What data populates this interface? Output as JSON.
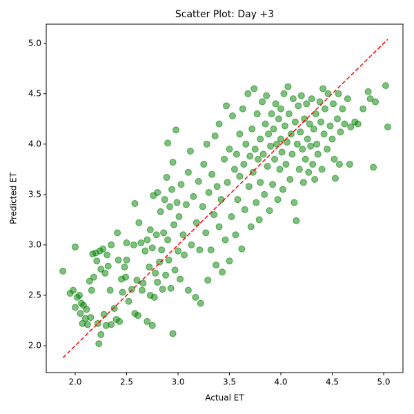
{
  "chart_data": {
    "type": "scatter",
    "title": "Scatter Plot: Day +3",
    "xlabel": "Actual ET",
    "ylabel": "Predicted ET",
    "color": "green",
    "x": [
      1.88,
      1.95,
      1.98,
      2.0,
      2.0,
      2.02,
      2.04,
      2.05,
      2.06,
      2.07,
      2.08,
      2.1,
      2.11,
      2.12,
      2.14,
      2.15,
      2.16,
      2.17,
      2.18,
      2.2,
      2.21,
      2.22,
      2.23,
      2.24,
      2.25,
      2.25,
      2.27,
      2.28,
      2.29,
      2.3,
      2.31,
      2.32,
      2.34,
      2.35,
      2.35,
      2.38,
      2.4,
      2.41,
      2.42,
      2.43,
      2.45,
      2.46,
      2.48,
      2.49,
      2.5,
      2.5,
      2.52,
      2.55,
      2.57,
      2.58,
      2.58,
      2.6,
      2.61,
      2.62,
      2.64,
      2.65,
      2.66,
      2.68,
      2.7,
      2.7,
      2.72,
      2.73,
      2.73,
      2.75,
      2.75,
      2.76,
      2.77,
      2.78,
      2.79,
      2.8,
      2.8,
      2.82,
      2.83,
      2.84,
      2.85,
      2.86,
      2.87,
      2.88,
      2.89,
      2.9,
      2.9,
      2.91,
      2.92,
      2.93,
      2.94,
      2.95,
      2.95,
      2.96,
      2.97,
      2.98,
      2.99,
      3.0,
      3.01,
      3.02,
      3.03,
      3.05,
      3.06,
      3.08,
      3.1,
      3.1,
      3.12,
      3.13,
      3.15,
      3.17,
      3.18,
      3.2,
      3.21,
      3.22,
      3.24,
      3.25,
      3.27,
      3.28,
      3.29,
      3.3,
      3.32,
      3.33,
      3.35,
      3.36,
      3.37,
      3.38,
      3.4,
      3.4,
      3.42,
      3.43,
      3.45,
      3.46,
      3.47,
      3.48,
      3.5,
      3.5,
      3.52,
      3.53,
      3.55,
      3.56,
      3.57,
      3.58,
      3.6,
      3.6,
      3.62,
      3.63,
      3.64,
      3.65,
      3.66,
      3.68,
      3.69,
      3.7,
      3.71,
      3.72,
      3.73,
      3.74,
      3.75,
      3.76,
      3.77,
      3.78,
      3.79,
      3.8,
      3.8,
      3.82,
      3.83,
      3.84,
      3.85,
      3.86,
      3.87,
      3.88,
      3.89,
      3.9,
      3.91,
      3.92,
      3.93,
      3.94,
      3.95,
      3.96,
      3.97,
      3.98,
      3.99,
      4.0,
      4.0,
      4.01,
      4.02,
      4.03,
      4.04,
      4.05,
      4.06,
      4.07,
      4.08,
      4.09,
      4.1,
      4.11,
      4.12,
      4.13,
      4.14,
      4.15,
      4.16,
      4.17,
      4.18,
      4.19,
      4.2,
      4.21,
      4.22,
      4.23,
      4.24,
      4.25,
      4.26,
      4.27,
      4.28,
      4.29,
      4.3,
      4.31,
      4.32,
      4.33,
      4.34,
      4.35,
      4.36,
      4.38,
      4.39,
      4.4,
      4.41,
      4.42,
      4.43,
      4.45,
      4.46,
      4.48,
      4.5,
      4.51,
      4.52,
      4.53,
      4.55,
      4.56,
      4.57,
      4.58,
      4.6,
      4.62,
      4.65,
      4.67,
      4.68,
      4.72,
      4.75,
      4.8,
      4.85,
      4.87,
      4.9,
      4.92,
      5.02,
      5.04
    ],
    "values": [
      2.74,
      2.52,
      2.55,
      2.98,
      2.38,
      2.48,
      2.5,
      2.32,
      2.42,
      2.22,
      2.4,
      2.27,
      2.36,
      2.21,
      2.64,
      2.28,
      2.55,
      2.91,
      2.68,
      2.92,
      2.84,
      2.22,
      2.02,
      2.94,
      2.11,
      2.76,
      2.96,
      2.31,
      2.72,
      2.2,
      2.9,
      2.79,
      2.55,
      2.21,
      3.0,
      2.37,
      2.26,
      3.12,
      2.85,
      2.24,
      2.66,
      2.53,
      2.78,
      2.68,
      2.85,
      3.02,
      2.44,
      2.56,
      3.0,
      2.32,
      3.41,
      2.65,
      2.3,
      3.22,
      3.02,
      2.55,
      2.62,
      2.94,
      2.24,
      3.05,
      2.78,
      2.5,
      3.15,
      2.2,
      2.97,
      3.49,
      2.48,
      2.72,
      3.1,
      2.63,
      3.52,
      2.83,
      3.33,
      2.95,
      2.56,
      3.12,
      3.45,
      2.7,
      3.67,
      4.01,
      3.05,
      2.85,
      3.38,
      2.57,
      3.55,
      3.82,
      2.12,
      3.2,
      2.75,
      4.14,
      3.42,
      2.94,
      3.28,
      2.66,
      3.6,
      3.1,
      2.9,
      3.4,
      3.72,
      2.55,
      3.93,
      3.0,
      3.48,
      2.48,
      3.22,
      3.63,
      2.95,
      2.42,
      3.38,
      3.8,
      3.12,
      4.0,
      2.65,
      3.52,
      2.95,
      3.7,
      3.3,
      4.08,
      2.8,
      3.58,
      3.18,
      4.2,
      3.45,
      2.73,
      3.85,
      3.05,
      4.38,
      3.62,
      2.84,
      3.95,
      3.28,
      4.28,
      3.75,
      3.1,
      3.9,
      3.45,
      4.1,
      3.68,
      2.96,
      4.35,
      3.8,
      3.35,
      4.0,
      4.5,
      3.58,
      3.88,
      3.18,
      4.15,
      3.72,
      4.55,
      3.95,
      3.42,
      4.3,
      3.85,
      3.25,
      4.05,
      3.62,
      4.42,
      3.9,
      3.5,
      4.2,
      4.48,
      3.78,
      4.1,
      3.34,
      3.98,
      4.3,
      3.6,
      4.15,
      3.85,
      4.4,
      4.0,
      3.45,
      4.25,
      3.75,
      4.05,
      4.35,
      3.92,
      3.55,
      4.5,
      4.18,
      3.8,
      4.02,
      4.57,
      4.3,
      3.65,
      4.1,
      3.9,
      4.45,
      3.42,
      4.22,
      3.24,
      4.0,
      4.38,
      3.75,
      4.12,
      4.48,
      3.95,
      3.62,
      4.25,
      3.85,
      4.4,
      4.05,
      3.72,
      4.2,
      3.98,
      4.45,
      3.8,
      4.15,
      3.65,
      4.3,
      4.0,
      3.9,
      4.42,
      4.22,
      3.75,
      4.55,
      4.1,
      4.35,
      3.95,
      4.5,
      4.18,
      4.05,
      4.4,
      3.85,
      3.66,
      4.25,
      4.5,
      3.8,
      4.12,
      4.35,
      4.2,
      4.45,
      3.8,
      4.17,
      4.22,
      4.2,
      4.35,
      4.52,
      4.45,
      3.77,
      4.42,
      4.58,
      4.17
    ],
    "reference_line": {
      "x": [
        1.88,
        5.04
      ],
      "y": [
        1.88,
        5.04
      ],
      "color": "red",
      "dashed": true
    },
    "xlim": [
      1.718,
      5.188
    ],
    "ylim": [
      1.733,
      5.19
    ],
    "xticks": [
      {
        "value": 2.0,
        "label": "2.0"
      },
      {
        "value": 2.5,
        "label": "2.5"
      },
      {
        "value": 3.0,
        "label": "3.0"
      },
      {
        "value": 3.5,
        "label": "3.5"
      },
      {
        "value": 4.0,
        "label": "4.0"
      },
      {
        "value": 4.5,
        "label": "4.5"
      },
      {
        "value": 5.0,
        "label": "5.0"
      }
    ],
    "yticks": [
      {
        "value": 2.0,
        "label": "2.0"
      },
      {
        "value": 2.5,
        "label": "2.5"
      },
      {
        "value": 3.0,
        "label": "3.0"
      },
      {
        "value": 3.5,
        "label": "3.5"
      },
      {
        "value": 4.0,
        "label": "4.0"
      },
      {
        "value": 4.5,
        "label": "4.5"
      },
      {
        "value": 5.0,
        "label": "5.0"
      }
    ],
    "grid": false
  }
}
